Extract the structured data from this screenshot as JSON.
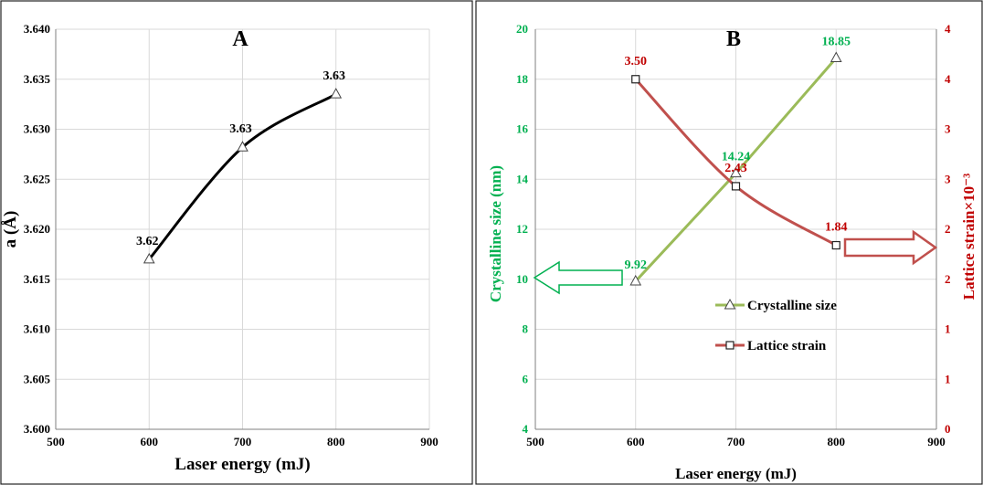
{
  "chart_data": [
    {
      "type": "line",
      "title": "A",
      "xlabel": "Laser energy (mJ)",
      "ylabel": "a (Å)",
      "xlim": [
        500,
        900
      ],
      "ylim": [
        3.6,
        3.64
      ],
      "x_ticks": [
        "500",
        "600",
        "700",
        "800",
        "900"
      ],
      "y_ticks": [
        "3.600",
        "3.605",
        "3.610",
        "3.615",
        "3.620",
        "3.625",
        "3.630",
        "3.635",
        "3.640"
      ],
      "grid": true,
      "series": [
        {
          "x": [
            600,
            700,
            800
          ],
          "y": [
            3.617,
            3.6282,
            3.6335
          ],
          "labels": [
            "3.62",
            "3.63",
            "3.63"
          ],
          "marker": "triangle",
          "color": "#000000"
        }
      ]
    },
    {
      "type": "line",
      "title": "B",
      "xlabel": "Laser energy (mJ)",
      "ylabel": "Crystalline size  (nm)",
      "ylabel_right": "Lattice strain×10⁻³",
      "xlim": [
        500,
        900
      ],
      "ylim": [
        4,
        20
      ],
      "ylim_right": [
        0,
        4
      ],
      "x_ticks": [
        "500",
        "600",
        "700",
        "800",
        "900"
      ],
      "y_ticks": [
        "4",
        "6",
        "8",
        "10",
        "12",
        "14",
        "16",
        "18",
        "20"
      ],
      "y_ticks_right": [
        "0",
        "1",
        "1",
        "2",
        "2",
        "3",
        "3",
        "4",
        "4"
      ],
      "grid": true,
      "legend_position": "center-right",
      "series": [
        {
          "name": "Crystalline size",
          "axis": "left",
          "x": [
            600,
            700,
            800
          ],
          "y": [
            9.92,
            14.24,
            18.85
          ],
          "labels": [
            "9.92",
            "14.24",
            "18.85"
          ],
          "marker": "triangle",
          "color": "#9bbb59",
          "label_color": "#00b050"
        },
        {
          "name": "Lattice strain",
          "axis": "right",
          "x": [
            600,
            700,
            800
          ],
          "y": [
            3.5,
            2.43,
            1.84
          ],
          "labels": [
            "3.50",
            "2.43",
            "1.84"
          ],
          "marker": "square",
          "color": "#c0504d",
          "label_color": "#c00000"
        }
      ],
      "colors": {
        "left_axis": "#00b050",
        "right_axis": "#c00000",
        "left_arrow": "#00b050",
        "right_arrow": "#c0504d"
      }
    }
  ]
}
